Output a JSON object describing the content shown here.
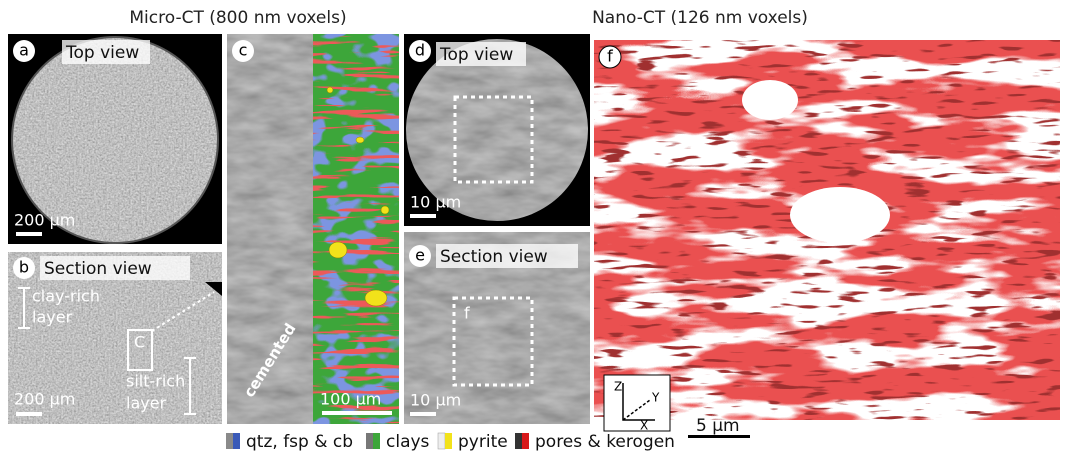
{
  "headers": {
    "micro": "Micro-CT (800 nm voxels)",
    "nano": "Nano-CT (126 nm voxels)"
  },
  "panels": {
    "a": {
      "letter": "a",
      "title": "Top view",
      "scale_bar": "200 µm"
    },
    "b": {
      "letter": "b",
      "title": "Section view",
      "scale_bar": "200 µm",
      "clay_label": [
        "clay-rich",
        "layer"
      ],
      "box_label": "C",
      "silt_label": [
        "silt-rich",
        "layer"
      ]
    },
    "c": {
      "letter": "c",
      "annotation": "cemented",
      "scale_bar": "100 µm"
    },
    "d": {
      "letter": "d",
      "title": "Top view",
      "scale_bar": "10 µm"
    },
    "e": {
      "letter": "e",
      "title": "Section view",
      "box_label": "f",
      "scale_bar": "10 µm"
    },
    "f": {
      "letter": "f",
      "axes": [
        "Z",
        "Y",
        "X"
      ],
      "scale_bar": "5 µm"
    }
  },
  "legend": [
    "qtz, fsp & cb",
    "clays",
    "pyrite",
    "pores & kerogen"
  ]
}
